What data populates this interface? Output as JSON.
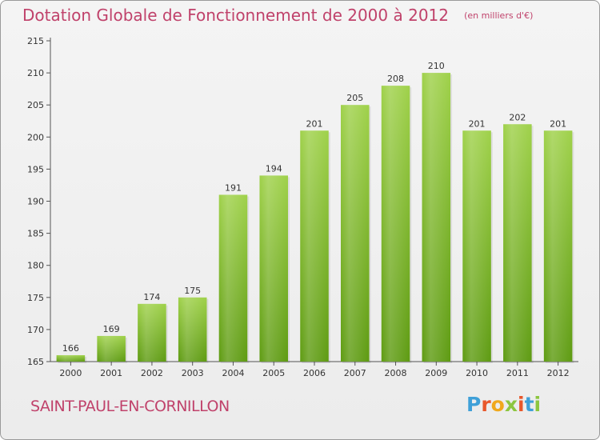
{
  "header": {
    "title": "Dotation Globale de Fonctionnement de 2000 à 2012",
    "unit": "(en milliers d'€)"
  },
  "footer": {
    "commune": "SAINT-PAUL-EN-CORNILLON",
    "logo_text": "Proxiti",
    "logo_colors": [
      "#3fa0d8",
      "#e8572b",
      "#f0a81c",
      "#8cc63f",
      "#e8572b",
      "#3fa0d8",
      "#8cc63f"
    ]
  },
  "colors": {
    "bar_top": "#9fd14a",
    "bar_bottom": "#5e9b12",
    "title": "#c0426b",
    "axis": "#555555",
    "grid": "#dddddd"
  },
  "chart_data": {
    "type": "bar",
    "title": "Dotation Globale de Fonctionnement de 2000 à 2012",
    "subtitle": "(en milliers d'€)",
    "xlabel": "",
    "ylabel": "",
    "categories": [
      "2000",
      "2001",
      "2002",
      "2003",
      "2004",
      "2005",
      "2006",
      "2007",
      "2008",
      "2009",
      "2010",
      "2011",
      "2012"
    ],
    "values": [
      166,
      169,
      174,
      175,
      191,
      194,
      201,
      205,
      208,
      210,
      201,
      202,
      201
    ],
    "data_labels": [
      "166",
      "169",
      "174",
      "175",
      "191",
      "194",
      "201",
      "205",
      "208",
      "210",
      "201",
      "202",
      "201"
    ],
    "ylim": [
      165,
      215
    ],
    "yticks": [
      165,
      170,
      175,
      180,
      185,
      190,
      195,
      200,
      205,
      210,
      215
    ],
    "grid": false,
    "legend": "none"
  }
}
